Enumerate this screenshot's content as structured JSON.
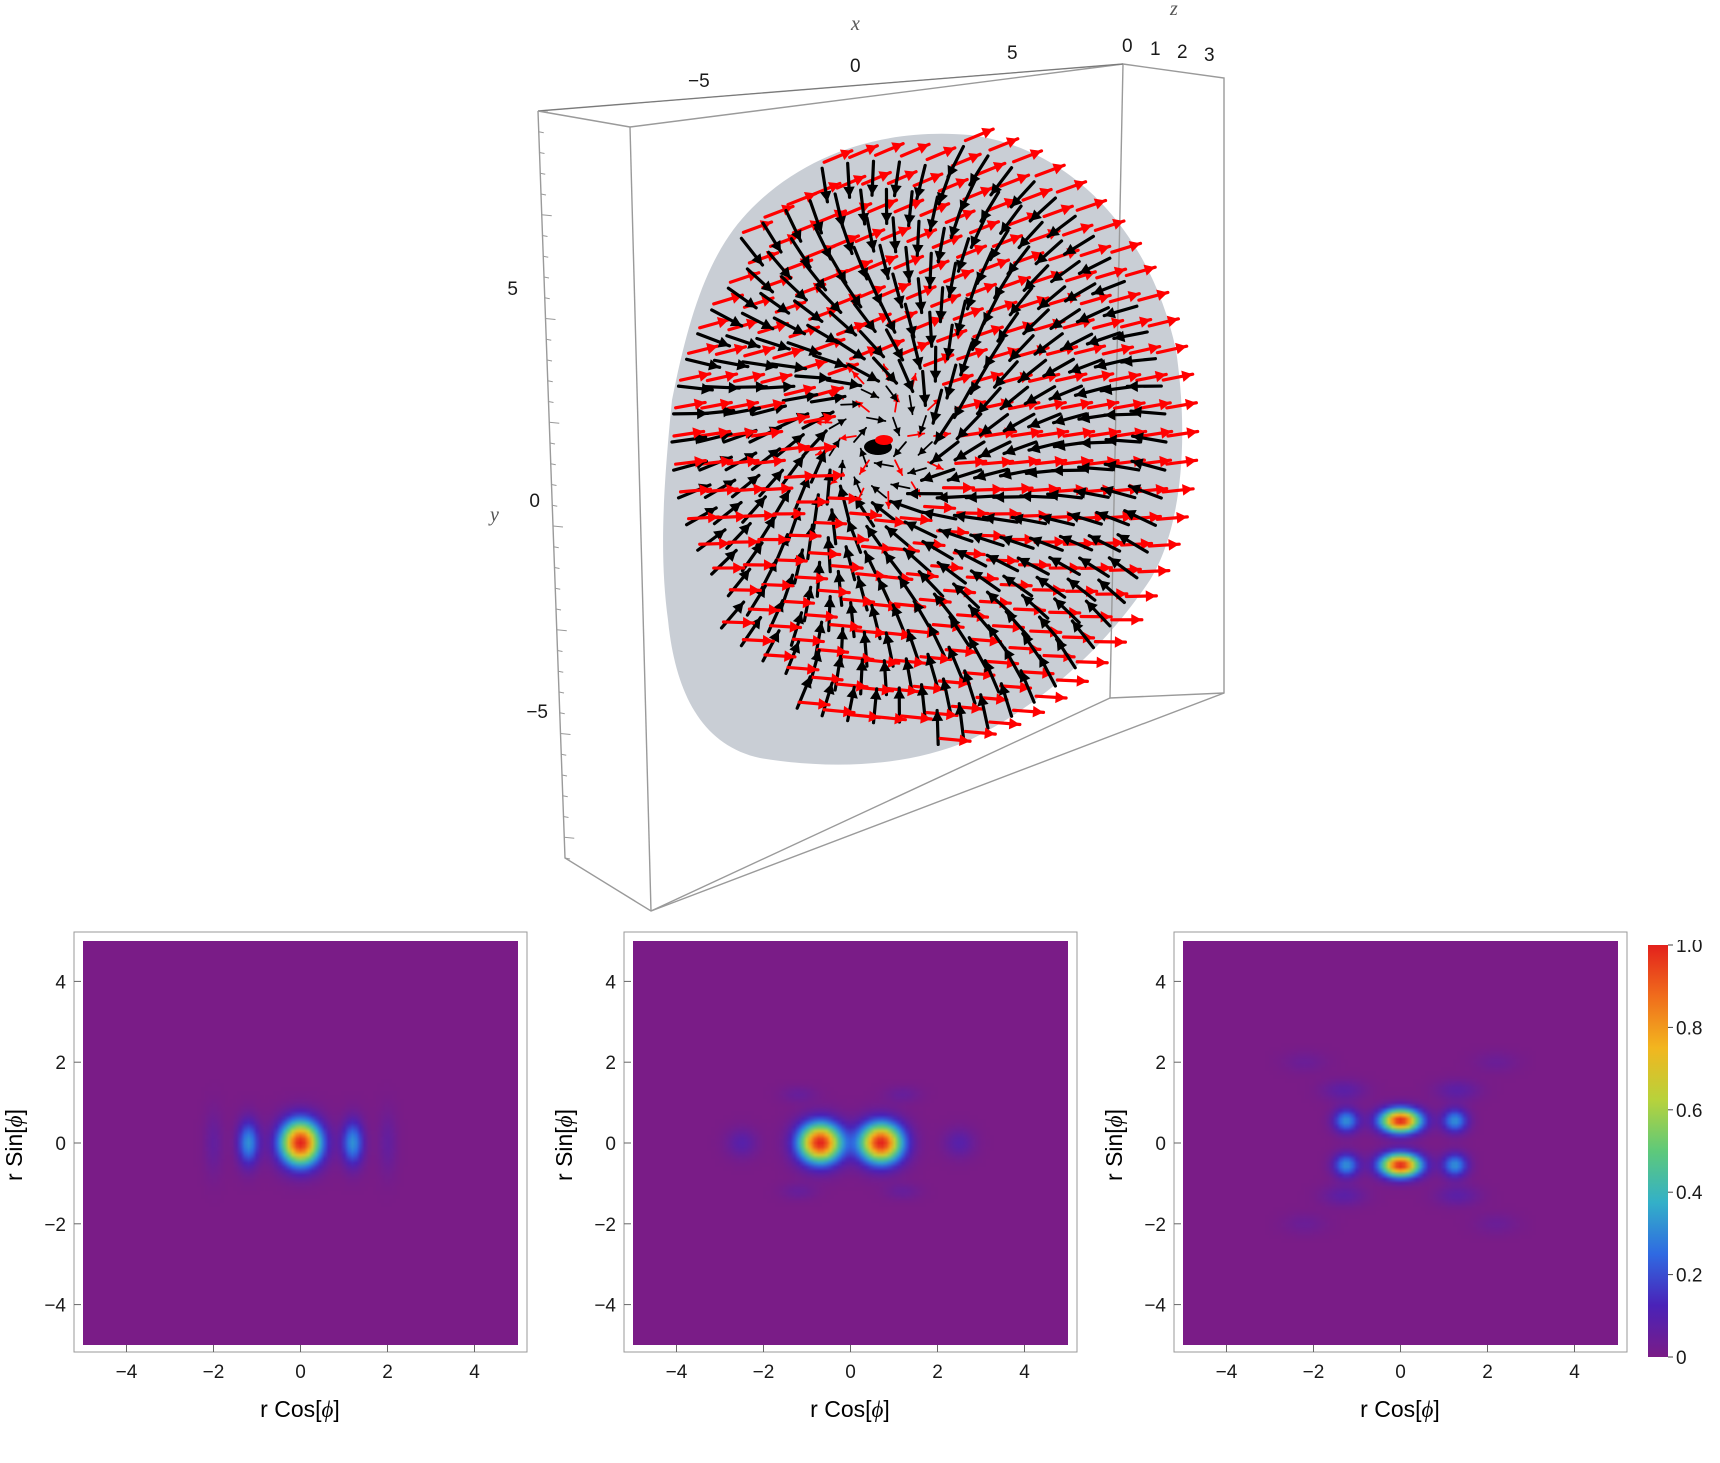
{
  "top_plot": {
    "type": "3d-vector-field",
    "axes": {
      "x": {
        "label": "x",
        "ticks": [
          "−5",
          "0",
          "5"
        ]
      },
      "y": {
        "label": "y",
        "ticks": [
          "5",
          "0",
          "−5"
        ]
      },
      "z": {
        "label": "z",
        "ticks": [
          "0",
          "1",
          "2",
          "3"
        ]
      }
    },
    "series": [
      {
        "color": "#ff0000"
      },
      {
        "color": "#000000"
      }
    ],
    "disk_color": "#c6cbd3"
  },
  "chart_data": [
    {
      "type": "heatmap",
      "xlabel_prefix": "r Cos[",
      "xlabel_sym": "ϕ",
      "xlabel_suffix": "]",
      "ylabel_prefix": "r Sin[",
      "ylabel_sym": "ϕ",
      "ylabel_suffix": "]",
      "xlim": [
        -5,
        5
      ],
      "ylim": [
        -5,
        5
      ],
      "xticks": [
        "−4",
        "−2",
        "0",
        "2",
        "4"
      ],
      "yticks": [
        "4",
        "2",
        "0",
        "−2",
        "−4"
      ],
      "blobs": [
        {
          "x": 0,
          "y": 0,
          "sx": 0.32,
          "sy": 0.38,
          "value": 1.0
        },
        {
          "x": -1.2,
          "y": 0,
          "sx": 0.17,
          "sy": 0.38,
          "value": 0.32
        },
        {
          "x": 1.2,
          "y": 0,
          "sx": 0.17,
          "sy": 0.38,
          "value": 0.32
        },
        {
          "x": -2.0,
          "y": 0,
          "sx": 0.15,
          "sy": 0.55,
          "value": 0.06
        },
        {
          "x": 2.0,
          "y": 0,
          "sx": 0.15,
          "sy": 0.55,
          "value": 0.06
        }
      ]
    },
    {
      "type": "heatmap",
      "xlabel_prefix": "r Cos[",
      "xlabel_sym": "ϕ",
      "xlabel_suffix": "]",
      "ylabel_prefix": "r Sin[",
      "ylabel_sym": "ϕ",
      "ylabel_suffix": "]",
      "xlim": [
        -5,
        5
      ],
      "ylim": [
        -5,
        5
      ],
      "xticks": [
        "−4",
        "−2",
        "0",
        "2",
        "4"
      ],
      "yticks": [
        "4",
        "2",
        "0",
        "−2",
        "−4"
      ],
      "blobs": [
        {
          "x": -0.7,
          "y": 0,
          "sx": 0.34,
          "sy": 0.34,
          "value": 1.0
        },
        {
          "x": 0.7,
          "y": 0,
          "sx": 0.34,
          "sy": 0.34,
          "value": 1.0
        },
        {
          "x": -2.5,
          "y": 0,
          "sx": 0.25,
          "sy": 0.25,
          "value": 0.09
        },
        {
          "x": 2.5,
          "y": 0,
          "sx": 0.25,
          "sy": 0.25,
          "value": 0.09
        },
        {
          "x": -1.2,
          "y": 1.2,
          "sx": 0.28,
          "sy": 0.14,
          "value": 0.05
        },
        {
          "x": 1.2,
          "y": 1.2,
          "sx": 0.28,
          "sy": 0.14,
          "value": 0.05
        },
        {
          "x": -1.2,
          "y": -1.2,
          "sx": 0.28,
          "sy": 0.14,
          "value": 0.05
        },
        {
          "x": 1.2,
          "y": -1.2,
          "sx": 0.28,
          "sy": 0.14,
          "value": 0.05
        }
      ]
    },
    {
      "type": "heatmap",
      "xlabel_prefix": "r Cos[",
      "xlabel_sym": "ϕ",
      "xlabel_suffix": "]",
      "ylabel_prefix": "r Sin[",
      "ylabel_sym": "ϕ",
      "ylabel_suffix": "]",
      "xlim": [
        -5,
        5
      ],
      "ylim": [
        -5,
        5
      ],
      "xticks": [
        "−4",
        "−2",
        "0",
        "2",
        "4"
      ],
      "yticks": [
        "4",
        "2",
        "0",
        "−2",
        "−4"
      ],
      "blobs": [
        {
          "x": 0,
          "y": 0.55,
          "sx": 0.32,
          "sy": 0.2,
          "value": 1.0
        },
        {
          "x": 0,
          "y": -0.55,
          "sx": 0.32,
          "sy": 0.2,
          "value": 1.0
        },
        {
          "x": -1.25,
          "y": 0.55,
          "sx": 0.2,
          "sy": 0.2,
          "value": 0.32
        },
        {
          "x": 1.25,
          "y": 0.55,
          "sx": 0.2,
          "sy": 0.2,
          "value": 0.32
        },
        {
          "x": -1.25,
          "y": -0.55,
          "sx": 0.2,
          "sy": 0.2,
          "value": 0.32
        },
        {
          "x": 1.25,
          "y": -0.55,
          "sx": 0.2,
          "sy": 0.2,
          "value": 0.32
        },
        {
          "x": -1.3,
          "y": 1.3,
          "sx": 0.35,
          "sy": 0.18,
          "value": 0.08
        },
        {
          "x": 1.3,
          "y": 1.3,
          "sx": 0.35,
          "sy": 0.18,
          "value": 0.08
        },
        {
          "x": -1.3,
          "y": -1.3,
          "sx": 0.35,
          "sy": 0.18,
          "value": 0.08
        },
        {
          "x": 1.3,
          "y": -1.3,
          "sx": 0.35,
          "sy": 0.18,
          "value": 0.08
        },
        {
          "x": -2.2,
          "y": 2.0,
          "sx": 0.35,
          "sy": 0.18,
          "value": 0.04
        },
        {
          "x": 2.2,
          "y": 2.0,
          "sx": 0.35,
          "sy": 0.18,
          "value": 0.04
        },
        {
          "x": -2.2,
          "y": -2.0,
          "sx": 0.35,
          "sy": 0.18,
          "value": 0.04
        },
        {
          "x": 2.2,
          "y": -2.0,
          "sx": 0.35,
          "sy": 0.18,
          "value": 0.04
        }
      ]
    }
  ],
  "colorbar": {
    "ticks": [
      "1.0",
      "0.8",
      "0.6",
      "0.4",
      "0.2",
      "0"
    ],
    "range": [
      0,
      1
    ],
    "colors": [
      "#7a1c87",
      "#4a22b8",
      "#2f6ae2",
      "#33b0c8",
      "#5ec97a",
      "#b8d23b",
      "#f2b61f",
      "#f06d1c",
      "#e3211c"
    ]
  }
}
